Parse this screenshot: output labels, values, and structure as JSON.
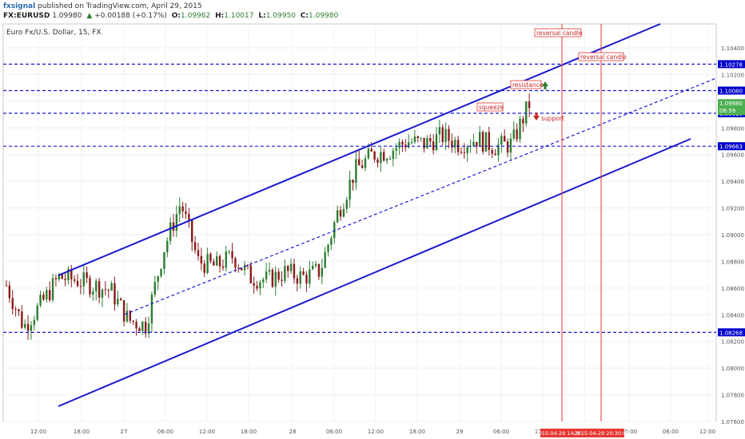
{
  "header": {
    "author": "fxsignal",
    "published_text": "published on TradingView.com, April 29, 2015",
    "symbol": "FX:EURUSD",
    "last": "1.09980",
    "change_arrow": "▲",
    "change": "+0.00188 (+0.17%)",
    "o_label": "O:",
    "o_value": "1.09962",
    "h_label": "H:",
    "h_value": "1.10017",
    "l_label": "L:",
    "l_value": "1.09950",
    "c_label": "C:",
    "c_value": "1.09980"
  },
  "chart_data": {
    "type": "candlestick",
    "title": "Euro Fx/U.S. Dollar, 15, FX",
    "y_ticks": [
      "1.10400",
      "1.10200",
      "1.10000",
      "1.09800",
      "1.09600",
      "1.09400",
      "1.09200",
      "1.09000",
      "1.08800",
      "1.08600",
      "1.08400",
      "1.08200",
      "1.08000",
      "1.07800",
      "1.07600"
    ],
    "y_tick_values": [
      1.104,
      1.102,
      1.1,
      1.098,
      1.096,
      1.094,
      1.092,
      1.09,
      1.088,
      1.086,
      1.084,
      1.082,
      1.08,
      1.078,
      1.076
    ],
    "x_ticks": [
      "12:00",
      "18:00",
      "27",
      "06:00",
      "12:00",
      "18:00",
      "28",
      "06:00",
      "12:00",
      "18:00",
      "29",
      "06:00",
      "12:00",
      "18:00",
      "00:00",
      "06:00",
      "12:00"
    ],
    "horizontal_levels": [
      {
        "label": "1.10278",
        "value": 1.10278
      },
      {
        "label": "1.10080",
        "value": 1.1008
      },
      {
        "label": "1.09910",
        "value": 1.0991
      },
      {
        "label": "1.09663",
        "value": 1.09663
      },
      {
        "label": "1.08268",
        "value": 1.08268
      }
    ],
    "last_price_label": "1.09980",
    "last_price_sub": "06:59",
    "vertical_time_labels": [
      "2015-04-29 14:30:00",
      "2015-04-29 20:30:00"
    ],
    "annotations": [
      "reversal candle",
      "reversal candle",
      "resistance",
      "squeeze",
      "support"
    ],
    "colors": {
      "up": "#2e7d32",
      "down": "#8b1a1a",
      "trend": "#1a1acc",
      "vline": "#e53935",
      "label_bg": "#0000cc",
      "last_bg": "#4caf50"
    },
    "series_close_sample": [
      1.0862,
      1.0831,
      1.0848,
      1.0868,
      1.0866,
      1.0862,
      1.0858,
      1.0836,
      1.0832,
      1.0888,
      1.0924,
      1.088,
      1.0876,
      1.0884,
      1.0868,
      1.0866,
      1.0872,
      1.0868,
      1.0873,
      1.0916,
      1.0948,
      1.096,
      1.0963,
      1.097,
      1.0968,
      1.0974,
      1.0968,
      1.0972,
      1.0966,
      1.0968,
      1.0998
    ]
  }
}
